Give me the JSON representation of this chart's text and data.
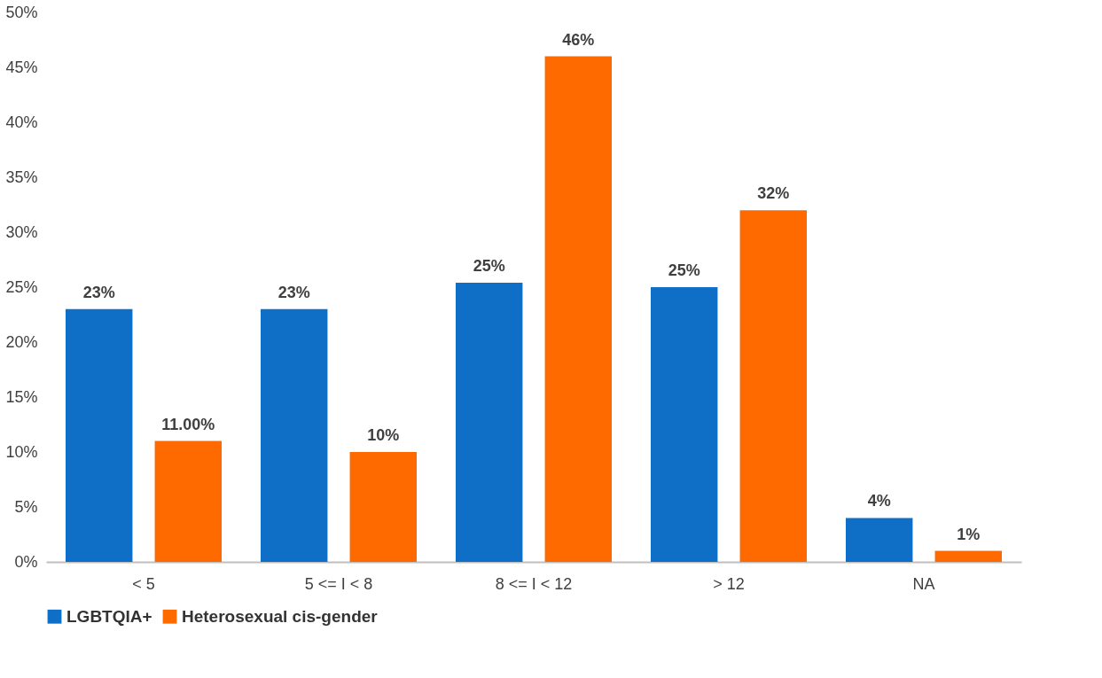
{
  "chart_data": {
    "type": "bar",
    "categories": [
      "< 5",
      "5 <= I < 8",
      "8 <= I < 12",
      "> 12",
      "NA"
    ],
    "series": [
      {
        "name": "LGBTQIA+",
        "color": "#0f6fc6",
        "values": [
          23,
          23,
          25.4,
          25,
          4
        ],
        "value_labels": [
          "23%",
          "23%",
          "25%",
          "25%",
          "4%"
        ]
      },
      {
        "name": "Heterosexual cis-gender",
        "color": "#ff6a00",
        "values": [
          11,
          10,
          46,
          32,
          1
        ],
        "value_labels": [
          "11.00%",
          "10%",
          "46%",
          "32%",
          "1%"
        ]
      }
    ],
    "ylim": [
      0,
      50
    ],
    "yticks": [
      {
        "value": 0,
        "label": "0%"
      },
      {
        "value": 5,
        "label": "5%"
      },
      {
        "value": 10,
        "label": "10%"
      },
      {
        "value": 15,
        "label": "15%"
      },
      {
        "value": 20,
        "label": "20%"
      },
      {
        "value": 25,
        "label": "25%"
      },
      {
        "value": 30,
        "label": "30%"
      },
      {
        "value": 35,
        "label": "35%"
      },
      {
        "value": 40,
        "label": "40%"
      },
      {
        "value": 45,
        "label": "45%"
      },
      {
        "value": 50,
        "label": "50%"
      }
    ],
    "grid": false,
    "legend": "bottom"
  }
}
